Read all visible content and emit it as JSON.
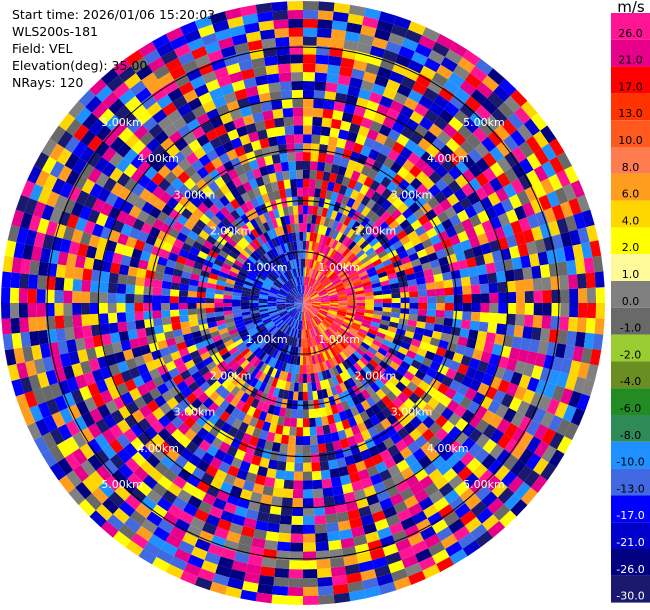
{
  "info": {
    "start_time": "Start time: 2026/01/06 15:20:03",
    "instrument": "WLS200s-181",
    "field": "Field: VEL",
    "elevation": "Elevation(deg): 35.00",
    "nrays": "NRays: 120"
  },
  "colorbar": {
    "unit": "m/s",
    "bins": [
      {
        "label": "26.0",
        "color": "#ff1493"
      },
      {
        "label": "21.0",
        "color": "#e6008a"
      },
      {
        "label": "17.0",
        "color": "#ff0000"
      },
      {
        "label": "13.0",
        "color": "#ff3300"
      },
      {
        "label": "10.0",
        "color": "#ff5a1e"
      },
      {
        "label": "8.0",
        "color": "#ff7c50"
      },
      {
        "label": "6.0",
        "color": "#ff9d1e"
      },
      {
        "label": "4.0",
        "color": "#ffd700"
      },
      {
        "label": "2.0",
        "color": "#ffff00"
      },
      {
        "label": "1.0",
        "color": "#fffa99"
      },
      {
        "label": "0.0",
        "color": "#808080"
      },
      {
        "label": "-1.0",
        "color": "#696969"
      },
      {
        "label": "-2.0",
        "color": "#9acd32"
      },
      {
        "label": "-4.0",
        "color": "#6b8e23"
      },
      {
        "label": "-6.0",
        "color": "#228b22"
      },
      {
        "label": "-8.0",
        "color": "#2e8b57"
      },
      {
        "label": "-10.0",
        "color": "#1e90ff"
      },
      {
        "label": "-13.0",
        "color": "#4169e1"
      },
      {
        "label": "-17.0",
        "color": "#0000ff"
      },
      {
        "label": "-21.0",
        "color": "#0000cd"
      },
      {
        "label": "-26.0",
        "color": "#000080"
      },
      {
        "label": "-30.0",
        "color": "#191970"
      }
    ]
  },
  "chart_data": {
    "type": "heatmap",
    "projection": "polar PPI",
    "field": "VEL",
    "nrays": 120,
    "range_rings_km": [
      "1.00km",
      "2.00km",
      "3.00km",
      "4.00km",
      "5.00km"
    ],
    "max_range_km": 5.9
  }
}
